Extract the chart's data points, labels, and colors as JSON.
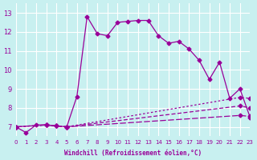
{
  "xlabel": "Windchill (Refroidissement éolien,°C)",
  "ylabel": "",
  "bg_color": "#c8f0f0",
  "grid_color": "#ffffff",
  "line_color": "#990099",
  "xlim": [
    0,
    23
  ],
  "ylim": [
    6.5,
    13.5
  ],
  "yticks": [
    7,
    8,
    9,
    10,
    11,
    12,
    13
  ],
  "xticks": [
    0,
    1,
    2,
    3,
    4,
    5,
    6,
    7,
    8,
    9,
    10,
    11,
    12,
    13,
    14,
    15,
    16,
    17,
    18,
    19,
    20,
    21,
    22,
    23
  ],
  "series": [
    {
      "x": [
        0,
        1,
        2,
        3,
        4,
        5,
        6,
        7,
        8,
        9,
        10,
        11,
        12,
        13,
        14,
        15,
        16,
        17,
        18,
        19,
        20,
        21,
        22,
        23
      ],
      "y": [
        7.0,
        6.7,
        7.1,
        7.1,
        7.05,
        7.0,
        8.6,
        12.8,
        11.9,
        11.8,
        12.5,
        12.55,
        12.6,
        12.6,
        11.8,
        11.4,
        11.5,
        11.1,
        10.5,
        9.5,
        10.4,
        8.5,
        9.0,
        7.5
      ],
      "dashes": [
        1,
        0
      ]
    },
    {
      "x": [
        0,
        3,
        4,
        5,
        22,
        23
      ],
      "y": [
        7.0,
        7.1,
        7.05,
        7.0,
        7.6,
        7.55
      ],
      "dashes": [
        6,
        2
      ]
    },
    {
      "x": [
        0,
        3,
        4,
        5,
        22,
        23
      ],
      "y": [
        7.0,
        7.1,
        7.05,
        7.0,
        8.1,
        8.0
      ],
      "dashes": [
        4,
        2
      ]
    },
    {
      "x": [
        0,
        3,
        4,
        5,
        22,
        23
      ],
      "y": [
        7.0,
        7.1,
        7.05,
        7.0,
        8.55,
        8.5
      ],
      "dashes": [
        2,
        2
      ]
    }
  ]
}
